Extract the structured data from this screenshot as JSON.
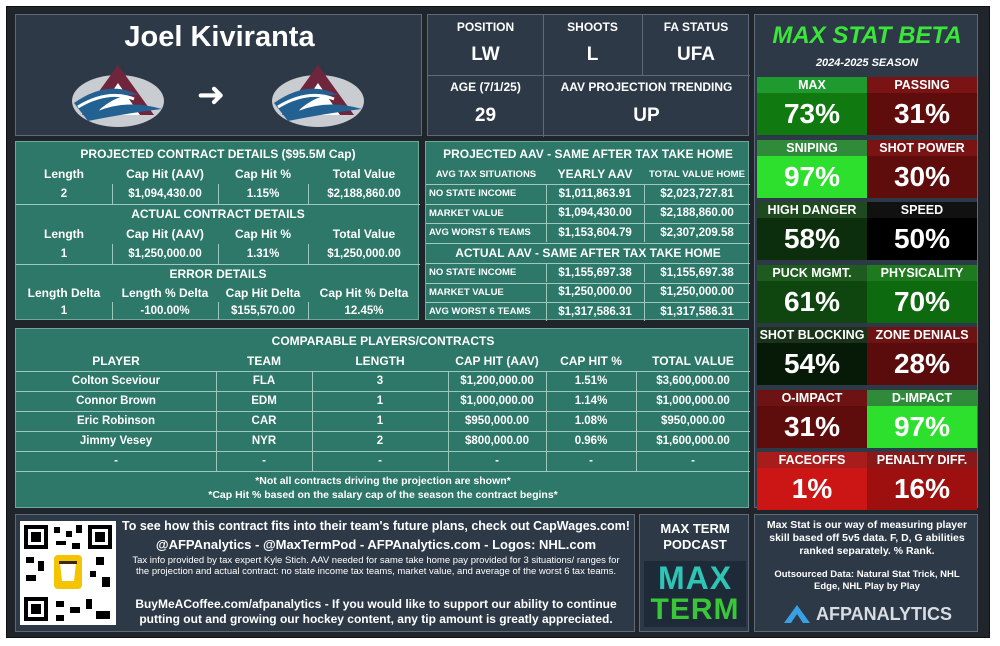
{
  "player": {
    "name": "Joel Kiviranta",
    "arrow": "➜"
  },
  "info": {
    "position_label": "POSITION",
    "position": "LW",
    "shoots_label": "SHOOTS",
    "shoots": "L",
    "fa_label": "FA STATUS",
    "fa": "UFA",
    "age_label": "AGE (7/1/25)",
    "age": "29",
    "trend_label": "AAV PROJECTION TRENDING",
    "trend": "UP"
  },
  "projected": {
    "title": "PROJECTED CONTRACT DETAILS ($95.5M Cap)",
    "headers": [
      "Length",
      "Cap Hit (AAV)",
      "Cap Hit %",
      "Total Value"
    ],
    "values": [
      "2",
      "$1,094,430.00",
      "1.15%",
      "$2,188,860.00"
    ]
  },
  "actual": {
    "title": "ACTUAL CONTRACT DETAILS",
    "headers": [
      "Length",
      "Cap Hit (AAV)",
      "Cap Hit %",
      "Total Value"
    ],
    "values": [
      "1",
      "$1,250,000.00",
      "1.31%",
      "$1,250,000.00"
    ]
  },
  "error": {
    "title": "ERROR DETAILS",
    "headers": [
      "Length Delta",
      "Length % Delta",
      "Cap Hit Delta",
      "Cap Hit % Delta"
    ],
    "values": [
      "1",
      "-100.00%",
      "$155,570.00",
      "12.45%"
    ]
  },
  "tax_projected": {
    "title": "PROJECTED AAV - SAME AFTER TAX TAKE HOME",
    "headers": [
      "AVG TAX SITUATIONS",
      "YEARLY AAV",
      "TOTAL VALUE HOME"
    ],
    "rows": [
      [
        "NO STATE INCOME",
        "$1,011,863.91",
        "$2,023,727.81"
      ],
      [
        "MARKET VALUE",
        "$1,094,430.00",
        "$2,188,860.00"
      ],
      [
        "AVG WORST 6 TEAMS",
        "$1,153,604.79",
        "$2,307,209.58"
      ]
    ]
  },
  "tax_actual": {
    "title": "ACTUAL AAV - SAME AFTER TAX TAKE HOME",
    "rows": [
      [
        "NO STATE INCOME",
        "$1,155,697.38",
        "$1,155,697.38"
      ],
      [
        "MARKET VALUE",
        "$1,250,000.00",
        "$1,250,000.00"
      ],
      [
        "AVG WORST 6 TEAMS",
        "$1,317,586.31",
        "$1,317,586.31"
      ]
    ]
  },
  "comparables": {
    "title": "COMPARABLE PLAYERS/CONTRACTS",
    "headers": [
      "PLAYER",
      "TEAM",
      "LENGTH",
      "CAP HIT (AAV)",
      "CAP HIT %",
      "TOTAL VALUE"
    ],
    "rows": [
      [
        "Colton Sceviour",
        "FLA",
        "3",
        "$1,200,000.00",
        "1.51%",
        "$3,600,000.00"
      ],
      [
        "Connor Brown",
        "EDM",
        "1",
        "$1,000,000.00",
        "1.14%",
        "$1,000,000.00"
      ],
      [
        "Eric Robinson",
        "CAR",
        "1",
        "$950,000.00",
        "1.08%",
        "$950,000.00"
      ],
      [
        "Jimmy Vesey",
        "NYR",
        "2",
        "$800,000.00",
        "0.96%",
        "$1,600,000.00"
      ],
      [
        "-",
        "-",
        "-",
        "-",
        "-",
        "-"
      ]
    ],
    "note1": "*Not all contracts driving the projection are shown*",
    "note2": "*Cap Hit % based on the salary cap of the season the contract begins*"
  },
  "maxstat": {
    "title": "MAX STAT BETA",
    "season": "2024-2025 SEASON",
    "stats": [
      {
        "label": "MAX",
        "value": "73%",
        "label_color": "#1f9a2e",
        "bg": "#107a10"
      },
      {
        "label": "PASSING",
        "value": "31%",
        "label_color": "#7a1414",
        "bg": "#5e0c0c"
      },
      {
        "label": "SNIPING",
        "value": "97%",
        "label_color": "#2f8a3a",
        "bg": "#2ee02e"
      },
      {
        "label": "SHOT POWER",
        "value": "30%",
        "label_color": "#7a1414",
        "bg": "#5e0c0c"
      },
      {
        "label": "HIGH DANGER",
        "value": "58%",
        "label_color": "#1f4a1f",
        "bg": "#0d2e0d"
      },
      {
        "label": "SPEED",
        "value": "50%",
        "label_color": "#111111",
        "bg": "#000000"
      },
      {
        "label": "PUCK MGMT.",
        "value": "61%",
        "label_color": "#1f5a1f",
        "bg": "#0f450f"
      },
      {
        "label": "PHYSICALITY",
        "value": "70%",
        "label_color": "#1f7a1f",
        "bg": "#0e6a0e"
      },
      {
        "label": "SHOT BLOCKING",
        "value": "54%",
        "label_color": "#1a331a",
        "bg": "#071907"
      },
      {
        "label": "ZONE DENIALS",
        "value": "28%",
        "label_color": "#6e1313",
        "bg": "#5a0c0c"
      },
      {
        "label": "O-IMPACT",
        "value": "31%",
        "label_color": "#6e1313",
        "bg": "#5e0c0c"
      },
      {
        "label": "D-IMPACT",
        "value": "97%",
        "label_color": "#2f8a3a",
        "bg": "#2ee02e"
      },
      {
        "label": "FACEOFFS",
        "value": "1%",
        "label_color": "#a81c1c",
        "bg": "#cc1515"
      },
      {
        "label": "PENALTY DIFF.",
        "value": "16%",
        "label_color": "#8a1818",
        "bg": "#9e1010"
      }
    ]
  },
  "footer": {
    "line1": "To see how this contract fits into their team's future plans, check out CapWages.com!",
    "line2": "@AFPAnalytics - @MaxTermPod - AFPAnalytics.com - Logos: NHL.com",
    "line3": "Tax info provided by tax expert Kyle Stich. AAV needed for same take home pay provided for 3 situations/ ranges for the projection and actual contract: no state income tax teams, market value, and average of the worst 6 tax teams.",
    "line4": "BuyMeACoffee.com/afpanalytics - If you would like to support our ability to continue putting out and growing our hockey content, any tip amount is greatly appreciated.",
    "podcast_title": "MAX TERM PODCAST",
    "podcast_logo_top": "MAX",
    "podcast_logo_bottom": "TERM",
    "maxstat_desc": "Max Stat is our way of measuring player skill based off 5v5 data. F, D, G abilities ranked separately. % Rank.",
    "outsourced": "Outsourced Data: Natural Stat Trick, NHL Edge, NHL Play by Play",
    "brand": "AFPANALYTICS"
  },
  "colors": {
    "teal": "#2d7869",
    "slate": "#2e3947",
    "title_green": "#39e639",
    "logo_burgundy": "#6f263d",
    "logo_blue": "#236192"
  }
}
